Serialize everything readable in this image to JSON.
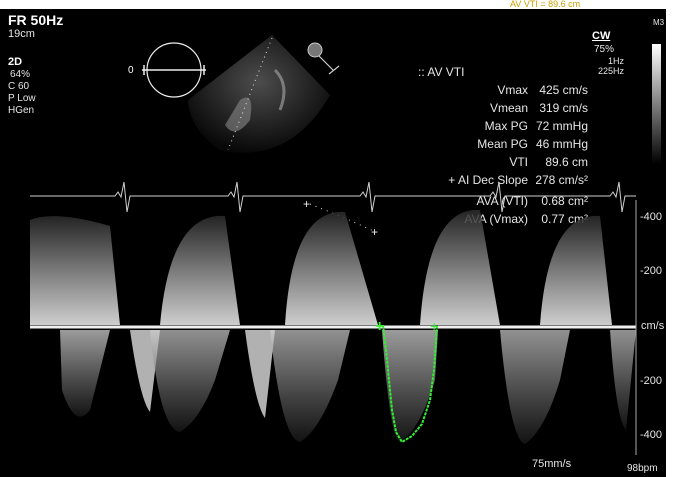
{
  "header": {
    "frame_rate": "FR 50Hz",
    "depth": "19cm",
    "top_right_clip": "AV VTI = 89.6 cm",
    "preset": "M3"
  },
  "mode_2d": {
    "label": "2D",
    "gain": "64%",
    "compress": "C 60",
    "power": "P Low",
    "freq": "HGen"
  },
  "angle_indicator": "0",
  "cw": {
    "label": "CW",
    "gain": "75%",
    "wall_filter": "1Hz",
    "prf": "225Hz"
  },
  "measurements": {
    "title": ":: AV VTI",
    "rows": [
      {
        "label": "Vmax",
        "value": "425 cm/s"
      },
      {
        "label": "Vmean",
        "value": "319 cm/s"
      },
      {
        "label": "Max PG",
        "value": "72 mmHg"
      },
      {
        "label": "Mean PG",
        "value": "46 mmHg"
      },
      {
        "label": "VTI",
        "value": "89.6 cm"
      },
      {
        "label": "+ AI Dec Slope",
        "value": "278 cm/s²"
      },
      {
        "label": "AVA (VTI)",
        "value": "0.68 cm²"
      },
      {
        "label": "AVA (Vmax)",
        "value": "0.77 cm²"
      }
    ]
  },
  "scale": {
    "ticks": [
      "-400",
      "-200",
      "cm/s",
      "-200",
      "-400"
    ]
  },
  "footer": {
    "sweep_speed": "75mm/s",
    "heart_rate": "98bpm"
  },
  "colors": {
    "background": "#000000",
    "text": "#e6e6e6",
    "trace": "#33ee33",
    "ecg": "#d0d0d0"
  }
}
